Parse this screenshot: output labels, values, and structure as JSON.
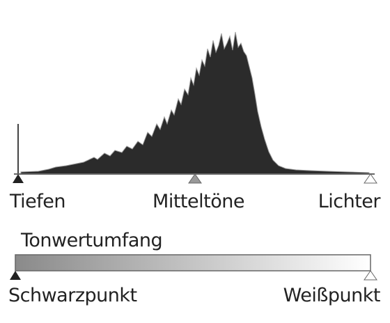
{
  "histogram": {
    "labels": {
      "left": "Tiefen",
      "middle": "Mitteltöne",
      "right": "Lichter"
    }
  },
  "range": {
    "title": "Tonwertumfang",
    "labels": {
      "left": "Schwarzpunkt",
      "right": "Weißpunkt"
    }
  }
}
